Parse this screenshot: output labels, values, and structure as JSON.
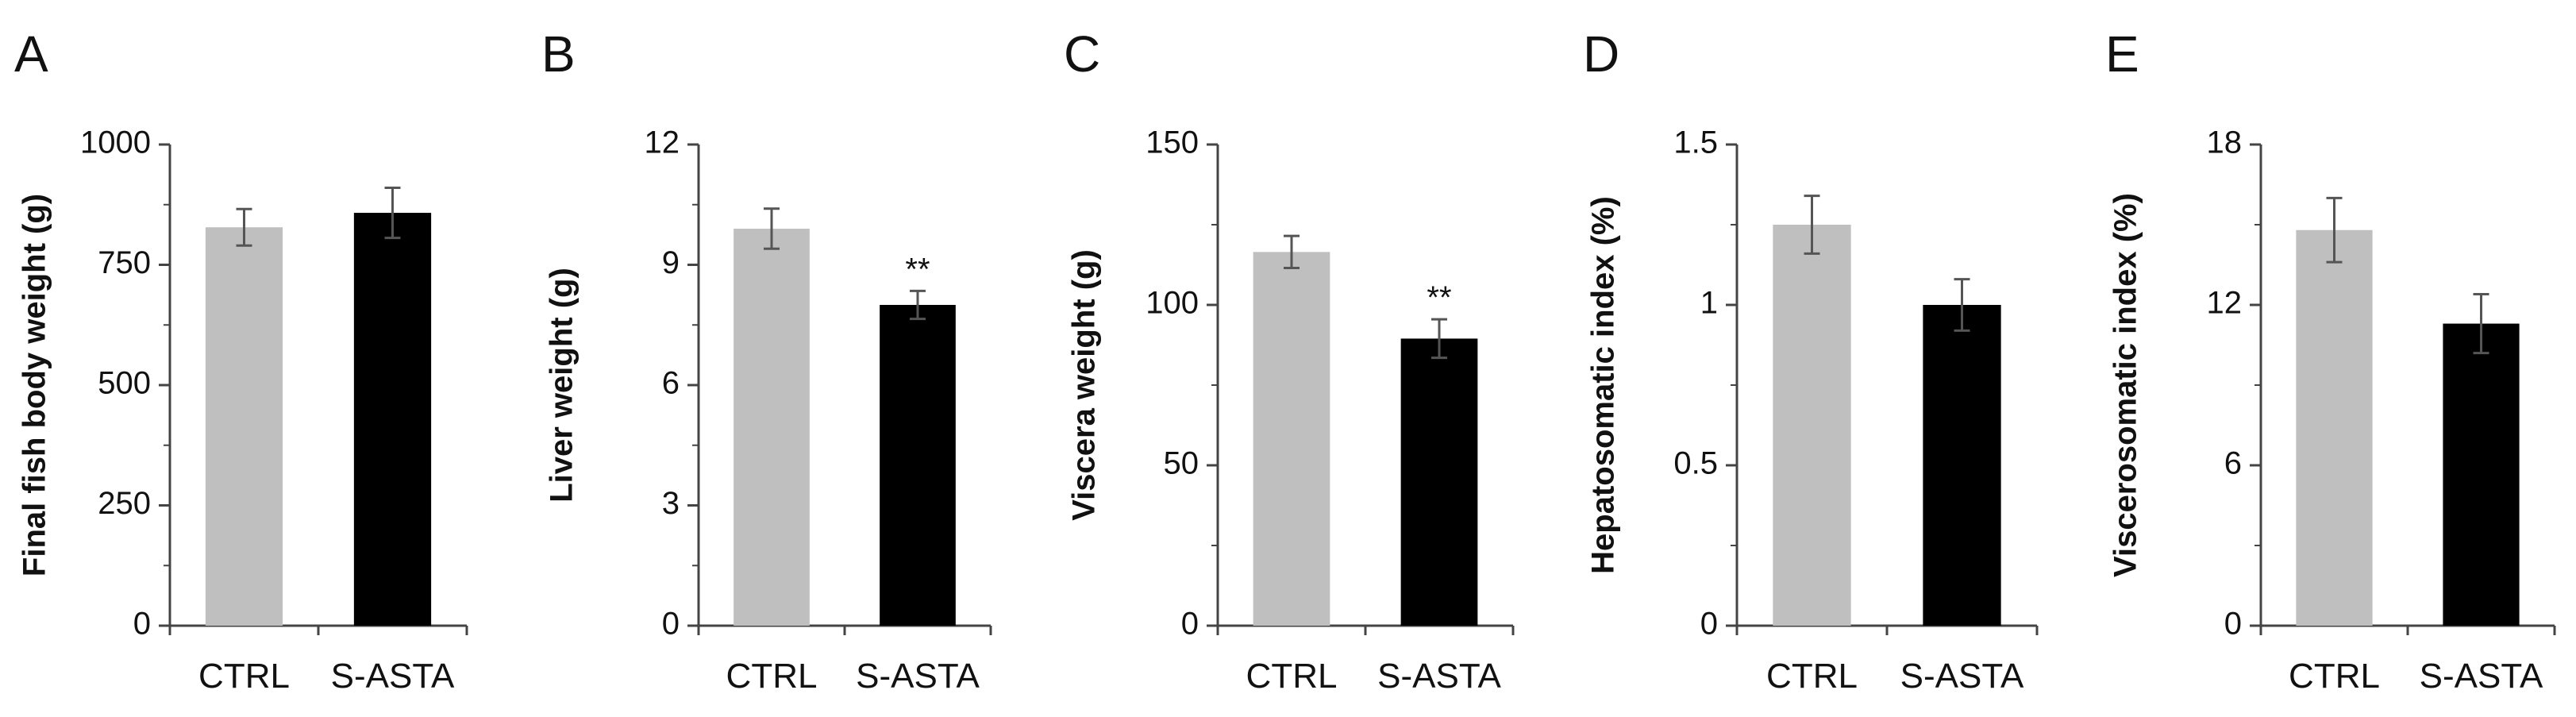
{
  "figure": {
    "background": "#ffffff",
    "bar_colors": {
      "CTRL": "#bfbfbf",
      "S-ASTA": "#000000"
    },
    "axis_color": "#444444"
  },
  "chart_data": [
    {
      "panel": "A",
      "type": "bar",
      "categories": [
        "CTRL",
        "S-ASTA"
      ],
      "values": [
        828,
        858
      ],
      "errors": [
        38,
        52
      ],
      "significance": [
        "",
        ""
      ],
      "ylabel": "Final fish body weight (g)",
      "ylim": [
        0,
        1000
      ],
      "yticks": [
        0,
        250,
        500,
        750,
        1000
      ],
      "ytick_labels": [
        "0",
        "250",
        "500",
        "750",
        "1000"
      ]
    },
    {
      "panel": "B",
      "type": "bar",
      "categories": [
        "CTRL",
        "S-ASTA"
      ],
      "values": [
        9.9,
        8.0
      ],
      "errors": [
        0.5,
        0.35
      ],
      "significance": [
        "",
        "**"
      ],
      "ylabel": "Liver weight (g)",
      "ylim": [
        0,
        12
      ],
      "yticks": [
        0,
        3,
        6,
        9,
        12
      ],
      "ytick_labels": [
        "0",
        "3",
        "6",
        "9",
        "12"
      ]
    },
    {
      "panel": "C",
      "type": "bar",
      "categories": [
        "CTRL",
        "S-ASTA"
      ],
      "values": [
        116.5,
        89.5
      ],
      "errors": [
        5,
        6
      ],
      "significance": [
        "",
        "**"
      ],
      "ylabel": "Viscera weight (g)",
      "ylim": [
        0,
        150
      ],
      "yticks": [
        0,
        50,
        100,
        150
      ],
      "ytick_labels": [
        "0",
        "50",
        "100",
        "150"
      ]
    },
    {
      "panel": "D",
      "type": "bar",
      "categories": [
        "CTRL",
        "S-ASTA"
      ],
      "values": [
        1.25,
        1.0
      ],
      "errors": [
        0.09,
        0.08
      ],
      "significance": [
        "",
        ""
      ],
      "ylabel": "Hepatosomatic index (%)",
      "ylim": [
        0,
        1.5
      ],
      "yticks": [
        0,
        0.5,
        1,
        1.5
      ],
      "ytick_labels": [
        "0",
        "0.5",
        "1",
        "1.5"
      ]
    },
    {
      "panel": "E",
      "type": "bar",
      "categories": [
        "CTRL",
        "S-ASTA"
      ],
      "values": [
        14.8,
        11.3
      ],
      "errors": [
        1.2,
        1.1
      ],
      "significance": [
        "",
        ""
      ],
      "ylabel": "Viscerosomatic index (%)",
      "ylim": [
        0,
        18
      ],
      "yticks": [
        0,
        6,
        12,
        18
      ],
      "ytick_labels": [
        "0",
        "6",
        "12",
        "18"
      ]
    }
  ]
}
